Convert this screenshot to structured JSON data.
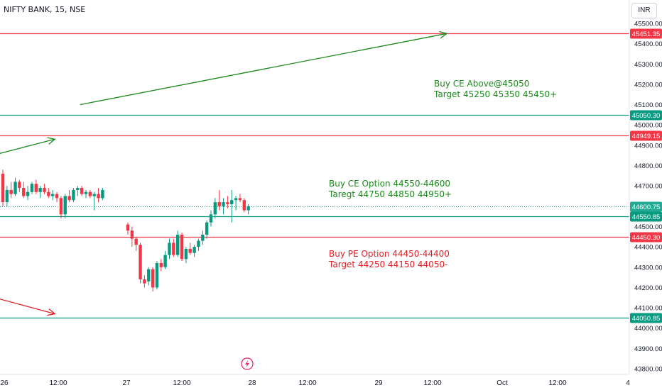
{
  "header": {
    "symbol": "NIFTY BANK, 15, NSE",
    "currency": "INR"
  },
  "annotations": [
    {
      "lines": [
        "Buy CE Above@45050",
        "Target 45250 45350 45450+"
      ],
      "color": "#1b8a1b"
    },
    {
      "lines": [
        "Buy CE Option 44550-44600",
        "Taregt  44750 44850 44950+"
      ],
      "color": "#1b8a1b"
    },
    {
      "lines": [
        "Buy PE Option 44450-44400",
        "Target 44250 44150 44050-"
      ],
      "color": "#e51c23"
    }
  ],
  "chart_data": {
    "type": "candlestick",
    "ylim": [
      43750,
      45560
    ],
    "y_ticks": [
      "45500.00",
      "45400.00",
      "45300.00",
      "45200.00",
      "45100.00",
      "45000.00",
      "44900.00",
      "44800.00",
      "44700.00",
      "44600.00",
      "44500.00",
      "44400.00",
      "44300.00",
      "44200.00",
      "44100.00",
      "44000.00",
      "43900.00",
      "43800.00"
    ],
    "x_ticks": [
      "26",
      "12:00",
      "27",
      "12:00",
      "28",
      "12:00",
      "29",
      "12:00",
      "Oct",
      "12:00",
      "4"
    ],
    "last_price": {
      "label": "44600.75",
      "value": 44600.75,
      "color": "#22ab94"
    },
    "horizontal_lines": [
      {
        "value": 45451.35,
        "label": "45451.35",
        "color": "#f23645"
      },
      {
        "value": 45050.3,
        "label": "45050.30",
        "color": "#089981"
      },
      {
        "value": 44949.15,
        "label": "44949.15",
        "color": "#f23645"
      },
      {
        "value": 44550.85,
        "label": "44550.85",
        "color": "#089981"
      },
      {
        "value": 44450.3,
        "label": "44450.30",
        "color": "#f23645"
      },
      {
        "value": 44050.85,
        "label": "44050.85",
        "color": "#089981"
      }
    ],
    "arrows": [
      {
        "from": [
          26.6,
          45100
        ],
        "to": [
          29.5,
          45450
        ],
        "color": "#1b8a1b"
      },
      {
        "from": [
          24.2,
          44575
        ],
        "to": [
          26.4,
          44930
        ],
        "color": "#1b8a1b"
      },
      {
        "from": [
          24.2,
          44440
        ],
        "to": [
          26.4,
          44070
        ],
        "color": "#e51c23"
      }
    ],
    "candles": [
      [
        44760,
        44780,
        44600,
        44620
      ],
      [
        44620,
        44700,
        44600,
        44680
      ],
      [
        44680,
        44720,
        44640,
        44660
      ],
      [
        44660,
        44740,
        44650,
        44720
      ],
      [
        44720,
        44730,
        44670,
        44690
      ],
      [
        44690,
        44720,
        44640,
        44650
      ],
      [
        44650,
        44700,
        44630,
        44670
      ],
      [
        44670,
        44720,
        44660,
        44710
      ],
      [
        44710,
        44730,
        44660,
        44670
      ],
      [
        44670,
        44700,
        44640,
        44690
      ],
      [
        44690,
        44710,
        44660,
        44670
      ],
      [
        44670,
        44690,
        44640,
        44650
      ],
      [
        44650,
        44680,
        44630,
        44660
      ],
      [
        44660,
        44670,
        44620,
        44640
      ],
      [
        44640,
        44650,
        44540,
        44560
      ],
      [
        44560,
        44660,
        44540,
        44650
      ],
      [
        44650,
        44680,
        44620,
        44630
      ],
      [
        44630,
        44690,
        44620,
        44680
      ],
      [
        44680,
        44700,
        44650,
        44690
      ],
      [
        44690,
        44700,
        44650,
        44660
      ],
      [
        44660,
        44680,
        44640,
        44670
      ],
      [
        44670,
        44680,
        44640,
        44650
      ],
      [
        44650,
        44670,
        44580,
        44660
      ],
      [
        44660,
        44690,
        44620,
        44640
      ],
      [
        44640,
        44690,
        44630,
        44680
      ],
      [
        44510,
        44520,
        44460,
        44480
      ],
      [
        44480,
        44500,
        44400,
        44440
      ],
      [
        44440,
        44450,
        44380,
        44410
      ],
      [
        44410,
        44420,
        44220,
        44240
      ],
      [
        44240,
        44260,
        44200,
        44220
      ],
      [
        44230,
        44300,
        44210,
        44290
      ],
      [
        44290,
        44300,
        44180,
        44200
      ],
      [
        44200,
        44330,
        44190,
        44320
      ],
      [
        44320,
        44340,
        44280,
        44300
      ],
      [
        44300,
        44380,
        44290,
        44360
      ],
      [
        44360,
        44440,
        44340,
        44420
      ],
      [
        44420,
        44440,
        44350,
        44360
      ],
      [
        44360,
        44480,
        44350,
        44460
      ],
      [
        44460,
        44470,
        44330,
        44340
      ],
      [
        44340,
        44400,
        44320,
        44390
      ],
      [
        44390,
        44420,
        44360,
        44370
      ],
      [
        44370,
        44410,
        44350,
        44400
      ],
      [
        44400,
        44440,
        44380,
        44430
      ],
      [
        44430,
        44480,
        44410,
        44460
      ],
      [
        44460,
        44530,
        44440,
        44520
      ],
      [
        44520,
        44580,
        44500,
        44560
      ],
      [
        44560,
        44640,
        44540,
        44620
      ],
      [
        44620,
        44680,
        44580,
        44600
      ],
      [
        44600,
        44640,
        44560,
        44620
      ],
      [
        44620,
        44650,
        44590,
        44610
      ],
      [
        44610,
        44680,
        44520,
        44630
      ],
      [
        44630,
        44650,
        44580,
        44640
      ],
      [
        44640,
        44660,
        44620,
        44630
      ],
      [
        44630,
        44640,
        44570,
        44580
      ],
      [
        44580,
        44610,
        44560,
        44600
      ]
    ]
  }
}
